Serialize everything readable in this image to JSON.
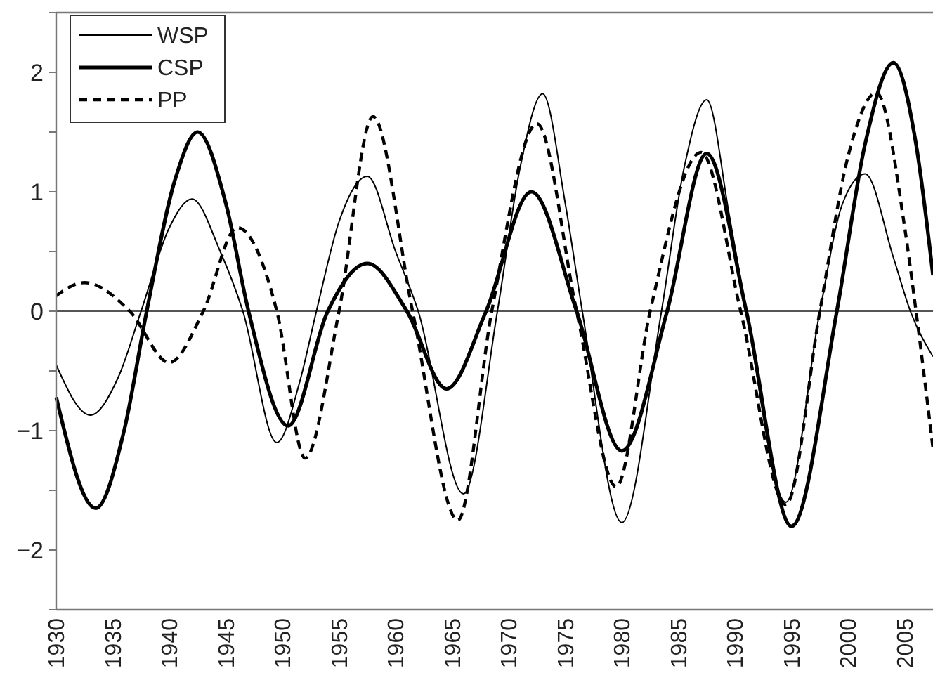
{
  "chart_data": {
    "type": "line",
    "xlim": [
      1930,
      2007.5
    ],
    "xticks": [
      1930,
      1935,
      1940,
      1945,
      1950,
      1955,
      1960,
      1965,
      1970,
      1975,
      1980,
      1985,
      1990,
      1995,
      2000,
      2005
    ],
    "ylim": [
      -2.5,
      2.5
    ],
    "yticks": [
      {
        "value": -2.5,
        "label": null
      },
      -2,
      {
        "value": -1.5,
        "label": null
      },
      -1,
      {
        "value": -0.5,
        "label": null
      },
      0,
      {
        "value": 0.5,
        "label": null
      },
      1,
      {
        "value": 1.5,
        "label": null
      },
      2,
      {
        "value": 2.5,
        "label": null
      }
    ],
    "grid": false,
    "legend": "top left",
    "marker": "none",
    "ref_lines": [
      {
        "axis": "y",
        "value": 0,
        "color": "#555555"
      }
    ],
    "series": [
      {
        "name": "WSP",
        "color": "#000000",
        "line_style": "solid",
        "x": [
          1930,
          1933,
          1935.5,
          1937.5,
          1940,
          1942,
          1944.5,
          1946.5,
          1949.5,
          1951.5,
          1953,
          1955,
          1957.5,
          1960,
          1962,
          1966,
          1969,
          1971,
          1973,
          1975,
          1976.5,
          1980,
          1983.5,
          1985.5,
          1987.5,
          1989.5,
          1991,
          1994.5,
          1997.5,
          1999.5,
          2001.5,
          2004,
          2005.5,
          2007.5
        ],
        "values": [
          -0.45,
          -0.87,
          -0.55,
          0,
          0.7,
          0.94,
          0.5,
          0,
          -1.1,
          -0.6,
          0,
          0.75,
          1.13,
          0.5,
          0,
          -1.53,
          0,
          1.2,
          1.82,
          0.9,
          0,
          -1.77,
          0,
          1.2,
          1.77,
          0.8,
          0,
          -1.6,
          0,
          0.9,
          1.15,
          0.45,
          0,
          -0.38
        ]
      },
      {
        "name": "CSP",
        "color": "#000000",
        "line_style": "solid",
        "x": [
          1930,
          1933.5,
          1936,
          1938,
          1940.5,
          1942.5,
          1945,
          1947,
          1950.5,
          1954,
          1957.5,
          1961,
          1964.5,
          1968,
          1972,
          1976,
          1980,
          1984,
          1987.5,
          1991,
          1995,
          1999,
          2001.5,
          2004,
          2006,
          2007.5
        ],
        "values": [
          -0.72,
          -1.65,
          -1.0,
          0,
          1.1,
          1.5,
          0.9,
          0,
          -0.96,
          0,
          0.4,
          0,
          -0.65,
          0,
          1.0,
          0,
          -1.17,
          0,
          1.32,
          0,
          -1.8,
          0,
          1.4,
          2.08,
          1.4,
          0.3
        ]
      },
      {
        "name": "PP",
        "color": "#000000",
        "line_style": "dashed",
        "x": [
          1930,
          1932.5,
          1936.5,
          1940,
          1943,
          1946,
          1949.5,
          1952,
          1955,
          1958,
          1961.5,
          1965.5,
          1968.5,
          1972.5,
          1976,
          1979.5,
          1982.5,
          1987,
          1990.5,
          1994.5,
          1997.5,
          2000,
          2002.5,
          2005,
          2006,
          2007.5
        ],
        "values": [
          0.13,
          0.24,
          0,
          -0.43,
          0,
          0.7,
          0,
          -1.23,
          0,
          1.63,
          0,
          -1.75,
          0,
          1.57,
          0,
          -1.47,
          0,
          1.33,
          0,
          -1.62,
          0,
          1.3,
          1.83,
          0.7,
          0,
          -1.15
        ]
      }
    ]
  }
}
